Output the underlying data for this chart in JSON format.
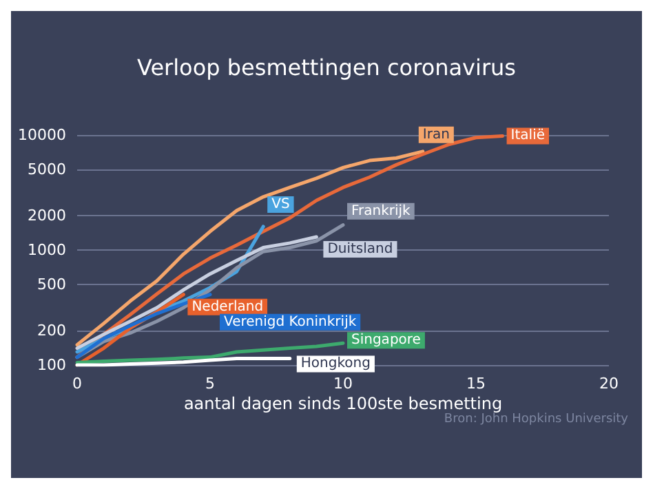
{
  "chart_data": {
    "type": "line",
    "title": "Verloop besmettingen coronavirus",
    "xlabel": "aantal dagen sinds 100ste besmetting",
    "annotations": [
      "Bron: John Hopkins University"
    ],
    "log": "y",
    "grid": "y",
    "legend": false,
    "marker": "none",
    "line_style": "solid",
    "xlim": [
      0,
      20
    ],
    "xticks": [
      0,
      5,
      10,
      15,
      20
    ],
    "ylim": [
      100,
      10000
    ],
    "yticks": [
      100,
      200,
      500,
      1000,
      2000,
      5000,
      10000
    ],
    "series": [
      {
        "name": "Iran",
        "color": "#f5a66b",
        "x": [
          0,
          1,
          2,
          3,
          4,
          5,
          6,
          7,
          8,
          9,
          10,
          11,
          12,
          13
        ],
        "values": [
          150,
          230,
          360,
          540,
          920,
          1450,
          2200,
          2900,
          3500,
          4200,
          5200,
          6000,
          6300,
          7200
        ]
      },
      {
        "name": "Italië",
        "color": "#e8693a",
        "x": [
          0,
          1,
          2,
          3,
          4,
          5,
          6,
          7,
          8,
          9,
          10,
          11,
          12,
          13,
          14,
          15,
          16
        ],
        "values": [
          117,
          185,
          275,
          415,
          620,
          850,
          1100,
          1450,
          1900,
          2700,
          3500,
          4300,
          5500,
          6800,
          8300,
          9500,
          9800
        ]
      },
      {
        "name": "VS",
        "color": "#4aa3df",
        "x": [
          0,
          1,
          2,
          3,
          4,
          5,
          6,
          7
        ],
        "values": [
          130,
          170,
          210,
          290,
          360,
          470,
          650,
          1600
        ]
      },
      {
        "name": "Frankrijk",
        "color": "#8a93a8",
        "x": [
          0,
          1,
          2,
          3,
          4,
          5,
          6,
          7,
          8,
          9,
          10
        ],
        "values": [
          117,
          160,
          190,
          240,
          315,
          450,
          700,
          970,
          1050,
          1200,
          1650
        ]
      },
      {
        "name": "Duitsland",
        "color": "#c8cfe0",
        "x": [
          0,
          1,
          2,
          3,
          4,
          5,
          6,
          7,
          8,
          9
        ],
        "values": [
          140,
          185,
          240,
          315,
          450,
          620,
          810,
          1050,
          1150,
          1300
        ]
      },
      {
        "name": "Nederland",
        "color": "#e8612c",
        "x": [
          0,
          1,
          2,
          3,
          4
        ],
        "values": [
          100,
          140,
          210,
          290,
          410
        ]
      },
      {
        "name": "Verenigd Koninkrijk",
        "color": "#1f6fd1",
        "x": [
          0,
          1,
          2,
          3,
          4,
          5
        ],
        "values": [
          117,
          170,
          220,
          280,
          340,
          410
        ]
      },
      {
        "name": "Singapore",
        "color": "#3daa6d",
        "x": [
          0,
          1,
          2,
          3,
          4,
          5,
          6,
          7,
          8,
          9,
          10
        ],
        "values": [
          105,
          108,
          110,
          112,
          115,
          117,
          130,
          135,
          140,
          145,
          155
        ]
      },
      {
        "name": "Hongkong",
        "color": "#ffffff",
        "x": [
          0,
          1,
          2,
          3,
          4,
          5,
          6,
          7,
          8
        ],
        "values": [
          100,
          100,
          102,
          104,
          106,
          110,
          114,
          114,
          114
        ]
      }
    ]
  }
}
